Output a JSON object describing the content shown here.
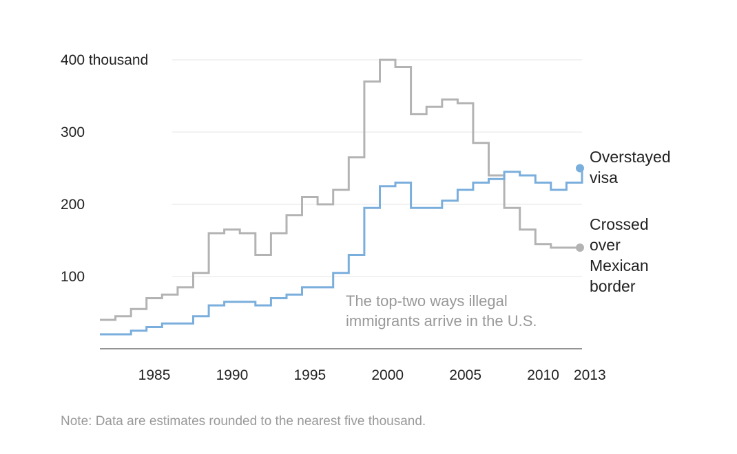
{
  "chart_data": {
    "type": "line",
    "step": true,
    "title": "",
    "xlabel": "",
    "ylabel": "",
    "y_unit_label": "thousand",
    "ylim": [
      0,
      400
    ],
    "xlim": [
      1982,
      2013
    ],
    "y_ticks": [
      100,
      200,
      300,
      400
    ],
    "y_tick_labels": [
      "100",
      "200",
      "300",
      "400 thousand"
    ],
    "x_ticks": [
      1985,
      1990,
      1995,
      2000,
      2005,
      2010,
      2013
    ],
    "x_tick_labels": [
      "1985",
      "1990",
      "1995",
      "2000",
      "2005",
      "2010",
      "2013"
    ],
    "grid": true,
    "annotation_lines": [
      "The top-two ways illegal",
      "immigrants arrive in the U.S."
    ],
    "x": [
      1982,
      1983,
      1984,
      1985,
      1986,
      1987,
      1988,
      1989,
      1990,
      1991,
      1992,
      1993,
      1994,
      1995,
      1996,
      1997,
      1998,
      1999,
      2000,
      2001,
      2002,
      2003,
      2004,
      2005,
      2006,
      2007,
      2008,
      2009,
      2010,
      2011,
      2012,
      2013
    ],
    "series": [
      {
        "key": "visa",
        "label_lines": [
          "Overstayed",
          "visa"
        ],
        "color": "#7aaedc",
        "values": [
          20,
          20,
          25,
          30,
          35,
          35,
          45,
          60,
          65,
          65,
          60,
          70,
          75,
          85,
          85,
          105,
          130,
          195,
          225,
          230,
          195,
          195,
          205,
          220,
          230,
          235,
          245,
          240,
          230,
          220,
          230,
          250
        ]
      },
      {
        "key": "border",
        "label_lines": [
          "Crossed",
          "over",
          "Mexican",
          "border"
        ],
        "color": "#b3b3b3",
        "values": [
          40,
          45,
          55,
          70,
          75,
          85,
          105,
          160,
          165,
          160,
          130,
          160,
          185,
          210,
          200,
          220,
          265,
          370,
          400,
          390,
          325,
          335,
          345,
          340,
          285,
          240,
          195,
          165,
          145,
          140,
          140,
          140
        ]
      }
    ],
    "note": "Note: Data are estimates rounded to the nearest five thousand."
  }
}
